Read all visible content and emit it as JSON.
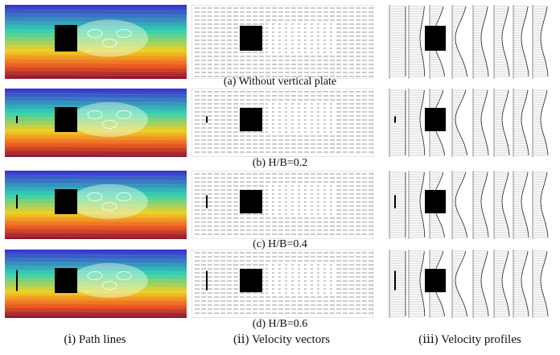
{
  "figure": {
    "rows": [
      {
        "label": "(a)  Without vertical plate",
        "plate": null
      },
      {
        "label": "(b)  H/B=0.2",
        "plate": 0.2
      },
      {
        "label": "(c)  H/B=0.4",
        "plate": 0.4
      },
      {
        "label": "(d)  H/B=0.6",
        "plate": 0.6
      }
    ],
    "columns": [
      {
        "label": "(ⅰ) Path lines",
        "kind": "pathlines"
      },
      {
        "label": "(ⅱ) Velocity vectors",
        "kind": "vectors"
      },
      {
        "label": "(ⅲ) Velocity profiles",
        "kind": "profiles"
      }
    ],
    "colors": {
      "obstacle": "#000000",
      "gradient_top": "#3a2fd0",
      "gradient_mid": "#2fd0b0",
      "gradient_low": "#f0d020",
      "gradient_bottom": "#8a1030"
    }
  }
}
